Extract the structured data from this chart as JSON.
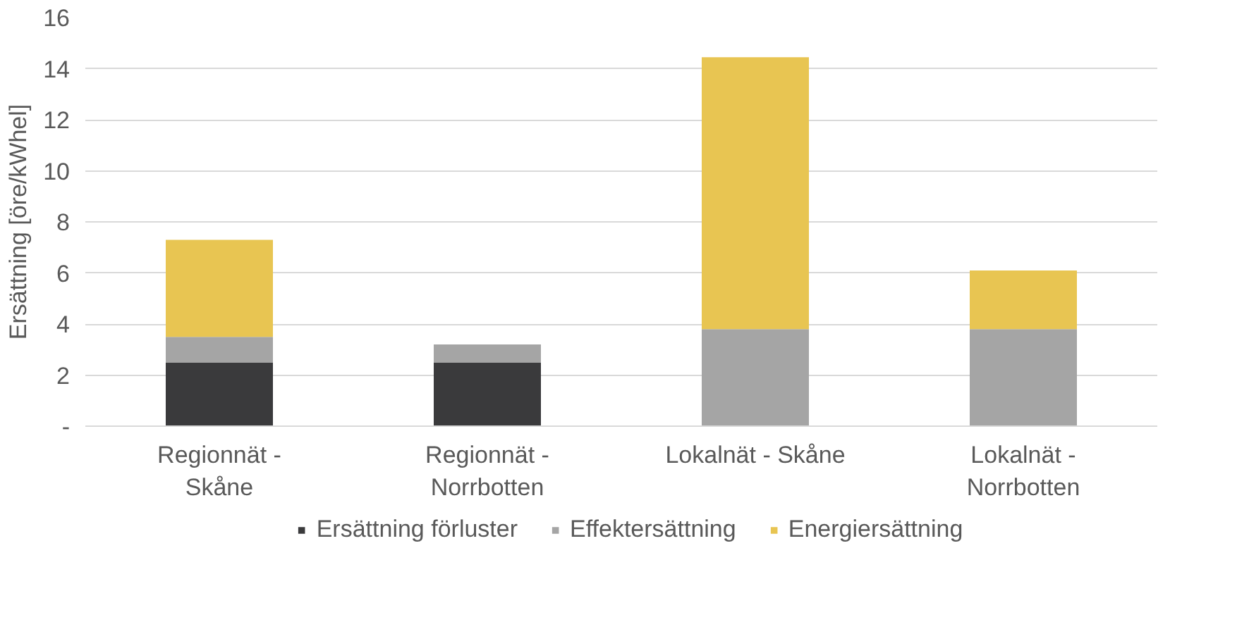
{
  "chart_data": {
    "type": "bar",
    "stacked": true,
    "ylabel": "Ersättning [öre/kWhel]",
    "categories": [
      "Regionnät -\nSkåne",
      "Regionnät -\nNorrbotten",
      "Lokalnät - Skåne",
      "Lokalnät -\nNorrbotten"
    ],
    "series": [
      {
        "name": "Ersättning förluster",
        "color": "#3a3a3c",
        "values": [
          2.5,
          2.5,
          null,
          null
        ]
      },
      {
        "name": "Effektersättning",
        "color": "#a5a5a5",
        "values": [
          1.0,
          0.7,
          3.8,
          3.8
        ]
      },
      {
        "name": "Energiersättning",
        "color": "#e8c552",
        "values": [
          3.8,
          null,
          10.65,
          2.3
        ]
      }
    ],
    "ylim": [
      0,
      16
    ],
    "yticks": [
      {
        "value": 0,
        "label": "-"
      },
      2,
      4,
      6,
      8,
      10,
      12,
      14,
      16
    ],
    "grid": "y",
    "legend": "bottom"
  }
}
